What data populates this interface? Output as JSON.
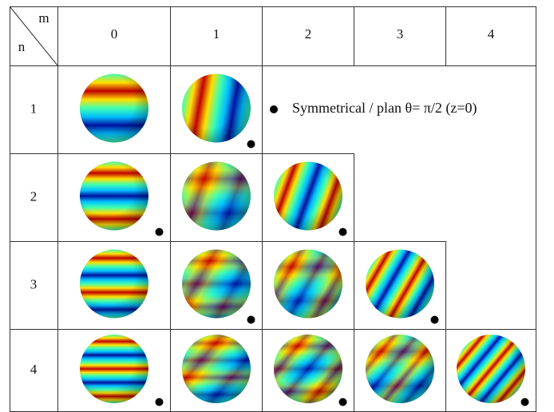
{
  "header": {
    "m": "m",
    "n": "n"
  },
  "columns": [
    "0",
    "1",
    "2",
    "3",
    "4"
  ],
  "rows": [
    "1",
    "2",
    "3",
    "4"
  ],
  "legend": "Symmetrical  /  plan θ= π/2 (z=0)"
}
